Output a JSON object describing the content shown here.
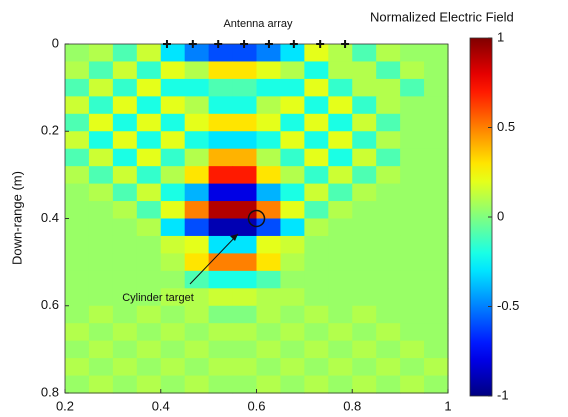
{
  "chart_data": {
    "type": "heatmap",
    "title": "Normalized Electric Field",
    "ylabel": "Down-range (m)",
    "annotations": [
      "Antenna array",
      "Cylinder target"
    ],
    "x": [
      0.225,
      0.275,
      0.325,
      0.375,
      0.425,
      0.475,
      0.525,
      0.575,
      0.625,
      0.675,
      0.725,
      0.775,
      0.825,
      0.875,
      0.925,
      0.975
    ],
    "y": [
      0.02,
      0.06,
      0.1,
      0.14,
      0.18,
      0.22,
      0.26,
      0.3,
      0.34,
      0.38,
      0.42,
      0.46,
      0.5,
      0.54,
      0.58,
      0.62,
      0.66,
      0.7,
      0.74,
      0.78
    ],
    "z": [
      [
        0.05,
        0.1,
        -0.1,
        0.15,
        -0.3,
        -0.5,
        -0.6,
        -0.6,
        -0.5,
        -0.3,
        0.2,
        0.1,
        -0.1,
        0.1,
        0.05,
        0.05
      ],
      [
        0.1,
        -0.1,
        0.15,
        -0.15,
        0.2,
        0.1,
        0.3,
        0.3,
        0.2,
        0.1,
        -0.2,
        0.1,
        0.1,
        -0.1,
        0.1,
        0.05
      ],
      [
        -0.1,
        0.15,
        -0.15,
        0.2,
        -0.2,
        -0.2,
        -0.1,
        -0.1,
        -0.2,
        -0.2,
        0.2,
        -0.15,
        0.1,
        0.1,
        -0.1,
        0.05
      ],
      [
        0.15,
        -0.15,
        0.2,
        -0.2,
        0.2,
        0.1,
        -0.2,
        -0.2,
        0.1,
        0.2,
        -0.2,
        0.2,
        -0.15,
        0.1,
        0.05,
        0.05
      ],
      [
        -0.1,
        0.2,
        -0.2,
        0.2,
        -0.2,
        0.2,
        0.3,
        0.3,
        0.2,
        -0.2,
        0.2,
        -0.2,
        0.15,
        -0.1,
        0.05,
        0.05
      ],
      [
        0.15,
        -0.2,
        0.2,
        -0.2,
        0.2,
        -0.2,
        -0.3,
        -0.3,
        -0.2,
        0.2,
        -0.2,
        0.2,
        -0.15,
        0.1,
        0.05,
        0.05
      ],
      [
        -0.1,
        0.15,
        -0.2,
        0.2,
        -0.15,
        0.1,
        0.4,
        0.4,
        0.1,
        -0.15,
        0.2,
        -0.2,
        0.15,
        -0.1,
        0.05,
        0.05
      ],
      [
        0.1,
        -0.1,
        0.15,
        -0.15,
        0.1,
        0.3,
        0.7,
        0.7,
        0.3,
        0.1,
        -0.15,
        0.15,
        -0.1,
        0.1,
        0.05,
        0.05
      ],
      [
        0.05,
        0.1,
        -0.1,
        0.15,
        -0.2,
        -0.4,
        -0.8,
        -0.8,
        -0.4,
        -0.2,
        0.15,
        -0.1,
        0.1,
        0.05,
        0.05,
        0.05
      ],
      [
        0.05,
        0.05,
        0.1,
        -0.1,
        0.2,
        0.5,
        0.9,
        0.9,
        0.5,
        0.2,
        -0.1,
        0.1,
        0.05,
        0.05,
        0.05,
        0.05
      ],
      [
        0.05,
        0.05,
        0.05,
        0.1,
        -0.3,
        -0.6,
        -0.9,
        -0.9,
        -0.6,
        -0.3,
        0.1,
        0.05,
        0.05,
        0.05,
        0.05,
        0.05
      ],
      [
        0.05,
        0.05,
        0.05,
        0.05,
        0.15,
        0.2,
        -0.3,
        -0.3,
        0.2,
        0.15,
        0.05,
        0.05,
        0.05,
        0.05,
        0.05,
        0.05
      ],
      [
        0.05,
        0.05,
        0.05,
        0.05,
        0.1,
        0.3,
        0.5,
        0.5,
        0.3,
        0.1,
        0.05,
        0.05,
        0.05,
        0.05,
        0.05,
        0.05
      ],
      [
        0.05,
        0.05,
        0.05,
        0.05,
        0.05,
        -0.1,
        -0.2,
        -0.2,
        -0.1,
        0.05,
        0.05,
        0.05,
        0.05,
        0.05,
        0.05,
        0.05
      ],
      [
        0.05,
        0.05,
        0.05,
        0.05,
        0.1,
        0.1,
        0.15,
        0.15,
        0.1,
        0.1,
        0.05,
        0.05,
        0.05,
        0.05,
        0.05,
        0.05
      ],
      [
        0.05,
        0.1,
        0.05,
        0.1,
        0.05,
        0.1,
        0.0,
        0.0,
        0.1,
        0.05,
        0.1,
        0.05,
        0.1,
        0.05,
        0.05,
        0.05
      ],
      [
        0.1,
        0.05,
        0.1,
        0.05,
        0.1,
        0.05,
        0.1,
        0.1,
        0.05,
        0.1,
        0.05,
        0.1,
        0.05,
        0.1,
        0.05,
        0.05
      ],
      [
        0.05,
        0.1,
        0.05,
        0.1,
        0.05,
        0.1,
        0.05,
        0.05,
        0.1,
        0.05,
        0.1,
        0.05,
        0.1,
        0.05,
        0.1,
        0.05
      ],
      [
        0.1,
        0.05,
        0.1,
        0.05,
        0.1,
        0.05,
        0.1,
        0.1,
        0.05,
        0.1,
        0.05,
        0.1,
        0.05,
        0.1,
        0.05,
        0.1
      ],
      [
        0.05,
        0.1,
        0.05,
        0.1,
        0.05,
        0.1,
        0.05,
        0.05,
        0.1,
        0.05,
        0.1,
        0.05,
        0.1,
        0.05,
        0.1,
        0.05
      ]
    ],
    "antennas": {
      "x": [
        0.413,
        0.467,
        0.52,
        0.574,
        0.626,
        0.678,
        0.733,
        0.785
      ],
      "y": [
        0,
        0,
        0,
        0,
        0,
        0,
        0,
        0
      ]
    },
    "target": {
      "x": 0.6,
      "y": 0.4
    },
    "xlim": [
      0.2,
      1
    ],
    "xticks": [
      0.2,
      0.4,
      0.6,
      0.8,
      1
    ],
    "ylim": [
      0.8,
      0
    ],
    "yticks": [
      0,
      0.2,
      0.4,
      0.6,
      0.8
    ],
    "clim": [
      -1,
      1
    ],
    "cticks": [
      -1,
      -0.5,
      0,
      0.5,
      1
    ],
    "colormap": "jet"
  }
}
